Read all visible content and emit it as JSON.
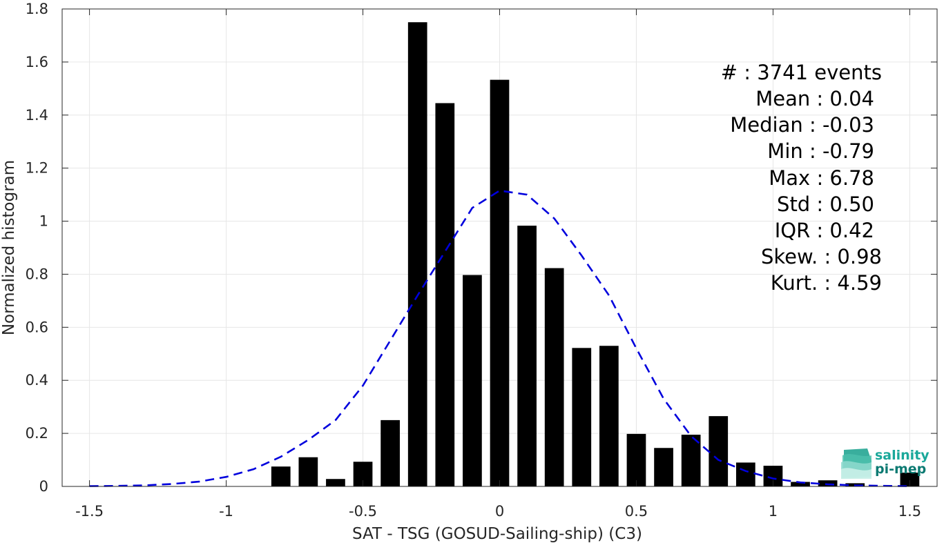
{
  "chart_data": {
    "type": "bar",
    "xlabel": "SAT - TSG (GOSUD-Sailing-ship) (C3)",
    "ylabel": "Normalized histogram",
    "xlim": [
      -1.6,
      1.6
    ],
    "ylim": [
      0,
      1.8
    ],
    "xticks": [
      -1.5,
      -1,
      -0.5,
      0,
      0.5,
      1,
      1.5
    ],
    "xtick_labels": [
      "-1.5",
      "-1",
      "-0.5",
      "0",
      "0.5",
      "1",
      "1.5"
    ],
    "yticks": [
      0,
      0.2,
      0.4,
      0.6,
      0.8,
      1,
      1.2,
      1.4,
      1.6,
      1.8
    ],
    "ytick_labels": [
      "0",
      "0.2",
      "0.4",
      "0.6",
      "0.8",
      "1",
      "1.2",
      "1.4",
      "1.6",
      "1.8"
    ],
    "grid": true,
    "bar_width": 0.07,
    "bars": {
      "x": [
        -0.8,
        -0.7,
        -0.6,
        -0.5,
        -0.4,
        -0.3,
        -0.2,
        -0.1,
        0.0,
        0.1,
        0.2,
        0.3,
        0.4,
        0.5,
        0.6,
        0.7,
        0.8,
        0.9,
        1.0,
        1.1,
        1.2,
        1.3,
        1.4,
        1.5
      ],
      "values": [
        0.075,
        0.11,
        0.028,
        0.093,
        0.25,
        1.75,
        1.445,
        0.797,
        1.533,
        0.983,
        0.823,
        0.522,
        0.53,
        0.198,
        0.145,
        0.195,
        0.265,
        0.09,
        0.078,
        0.017,
        0.023,
        0.012,
        0.0,
        0.052
      ],
      "color": "#000000"
    },
    "fit_curve": {
      "style": "dashed",
      "color": "#0000dd",
      "x": [
        -1.5,
        -1.4,
        -1.3,
        -1.2,
        -1.1,
        -1.0,
        -0.9,
        -0.8,
        -0.7,
        -0.6,
        -0.5,
        -0.4,
        -0.3,
        -0.2,
        -0.1,
        0.0,
        0.1,
        0.2,
        0.3,
        0.4,
        0.5,
        0.6,
        0.7,
        0.8,
        0.9,
        1.0,
        1.1,
        1.2,
        1.3,
        1.4,
        1.5
      ],
      "y": [
        0.001,
        0.002,
        0.004,
        0.009,
        0.018,
        0.036,
        0.065,
        0.112,
        0.175,
        0.25,
        0.38,
        0.55,
        0.72,
        0.885,
        1.05,
        1.115,
        1.1,
        1.01,
        0.87,
        0.72,
        0.52,
        0.33,
        0.19,
        0.1,
        0.058,
        0.03,
        0.015,
        0.008,
        0.004,
        0.002,
        0.001
      ]
    }
  },
  "stats": {
    "events": "#  : 3741 events",
    "mean": "Mean : 0.04",
    "median": "Median : -0.03",
    "min": "Min : -0.79",
    "max": "Max : 6.78",
    "std": "Std : 0.50",
    "iqr": "IQR : 0.42",
    "skew": "Skew. : 0.98",
    "kurt": "Kurt. : 4.59"
  },
  "logo": {
    "line1": "salinity",
    "line2": "pi-mep",
    "colors": {
      "text1": "#1aa89a",
      "text2": "#0c7a72",
      "mark": "#1f9e8e"
    }
  }
}
